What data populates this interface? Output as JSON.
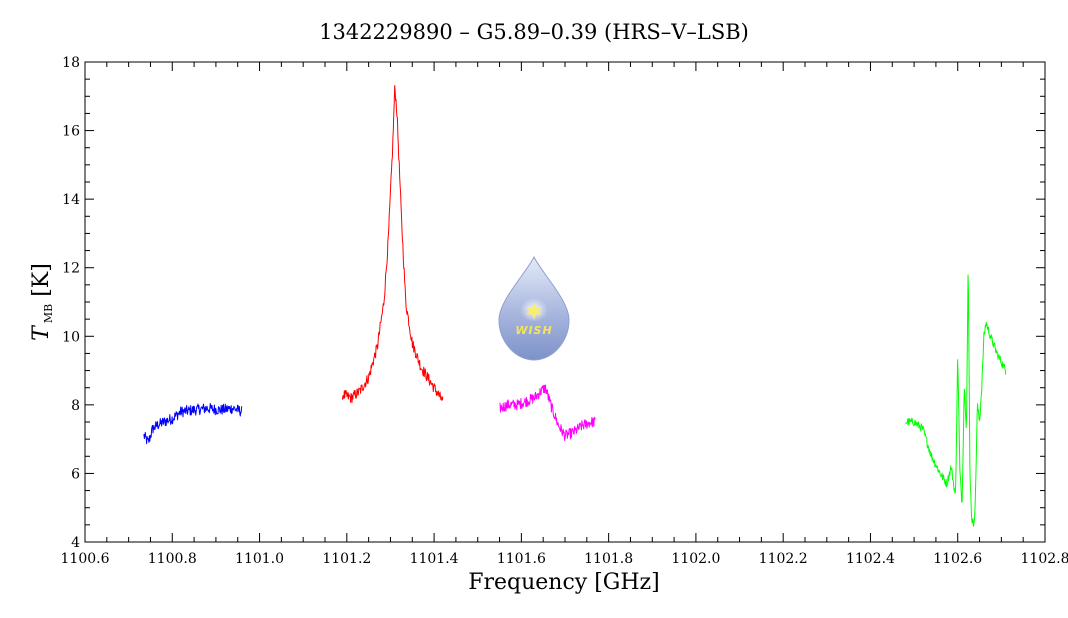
{
  "chart_data": {
    "type": "line",
    "title": "1342229890 – G5.89–0.39 (HRS–V–LSB)",
    "xlabel": "Frequency [GHz]",
    "ylabel": {
      "symbol": "T",
      "subscript": "MB",
      "unit": " [K]"
    },
    "xlim": [
      1100.6,
      1102.8
    ],
    "ylim": [
      4,
      18
    ],
    "xticks": [
      1100.6,
      1100.8,
      1101.0,
      1101.2,
      1101.4,
      1101.6,
      1101.8,
      1102.0,
      1102.2,
      1102.4,
      1102.6,
      1102.8
    ],
    "xtick_labels": [
      "1100.6",
      "1100.8",
      "1101.0",
      "1101.2",
      "1101.4",
      "1101.6",
      "1101.8",
      "1102.0",
      "1102.2",
      "1102.4",
      "1102.6",
      "1102.8"
    ],
    "yticks": [
      4,
      6,
      8,
      10,
      12,
      14,
      16,
      18
    ],
    "ytick_labels": [
      "4",
      "6",
      "8",
      "10",
      "12",
      "14",
      "16",
      "18"
    ],
    "grid": false,
    "legend": "none",
    "series": [
      {
        "color": "#0000ff",
        "x": [
          1100.735,
          1100.745,
          1100.755,
          1100.765,
          1100.78,
          1100.8,
          1100.82,
          1100.85,
          1100.88,
          1100.91,
          1100.94,
          1100.96
        ],
        "y": [
          7.1,
          6.9,
          7.3,
          7.4,
          7.5,
          7.6,
          7.8,
          7.85,
          7.9,
          7.85,
          7.9,
          7.8
        ]
      },
      {
        "color": "#ff0000",
        "x": [
          1101.19,
          1101.21,
          1101.23,
          1101.25,
          1101.27,
          1101.285,
          1101.295,
          1101.305,
          1101.31,
          1101.315,
          1101.325,
          1101.335,
          1101.35,
          1101.37,
          1101.39,
          1101.41,
          1101.42
        ],
        "y": [
          8.3,
          8.2,
          8.4,
          8.8,
          9.7,
          11.0,
          12.8,
          15.5,
          17.3,
          16.5,
          13.5,
          11.0,
          9.8,
          9.1,
          8.7,
          8.3,
          8.1
        ]
      },
      {
        "color": "#ff00ff",
        "x": [
          1101.55,
          1101.57,
          1101.59,
          1101.61,
          1101.63,
          1101.645,
          1101.655,
          1101.67,
          1101.685,
          1101.7,
          1101.72,
          1101.74,
          1101.76,
          1101.77
        ],
        "y": [
          7.9,
          8.0,
          8.0,
          8.1,
          8.2,
          8.4,
          8.5,
          7.9,
          7.4,
          7.1,
          7.2,
          7.4,
          7.5,
          7.5
        ]
      },
      {
        "color": "#00ff00",
        "x": [
          1102.48,
          1102.5,
          1102.52,
          1102.54,
          1102.56,
          1102.575,
          1102.585,
          1102.595,
          1102.6,
          1102.605,
          1102.61,
          1102.615,
          1102.62,
          1102.624,
          1102.628,
          1102.632,
          1102.636,
          1102.64,
          1102.645,
          1102.65,
          1102.655,
          1102.66,
          1102.665,
          1102.675,
          1102.69,
          1102.71
        ],
        "y": [
          7.5,
          7.5,
          7.3,
          6.5,
          6.0,
          5.7,
          6.2,
          5.3,
          9.5,
          6.0,
          5.1,
          8.6,
          7.3,
          12.2,
          6.0,
          4.7,
          4.5,
          5.0,
          8.0,
          7.5,
          8.5,
          10.0,
          10.4,
          10.0,
          9.5,
          9.0
        ]
      }
    ]
  },
  "logo": {
    "text": "WISH",
    "colors": {
      "drop_top": "#e4ebf7",
      "drop_bottom": "#7d92c9",
      "star": "#f7ee6a"
    }
  }
}
